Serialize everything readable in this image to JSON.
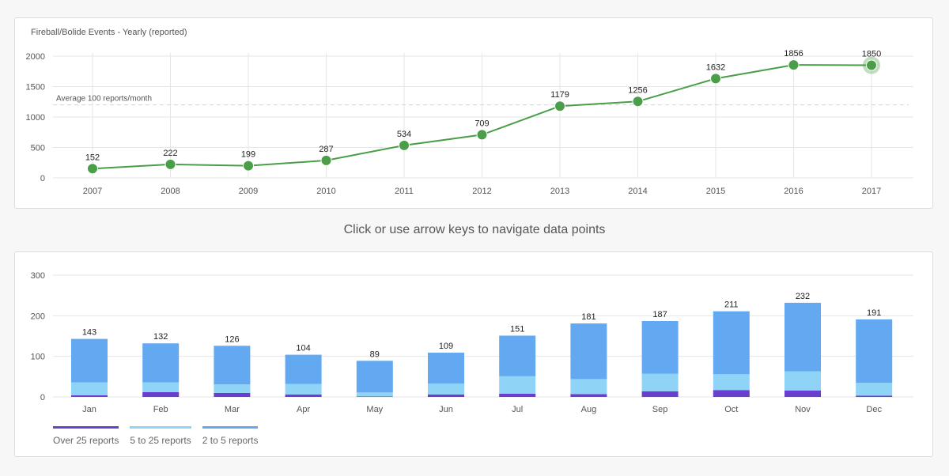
{
  "instruction": "Click or use arrow keys to navigate data points",
  "chart_data": [
    {
      "type": "line",
      "title": "Fireball/Bolide Events - Yearly (reported)",
      "x": [
        "2007",
        "2008",
        "2009",
        "2010",
        "2011",
        "2012",
        "2013",
        "2014",
        "2015",
        "2016",
        "2017"
      ],
      "values": [
        152,
        222,
        199,
        287,
        534,
        709,
        1179,
        1256,
        1632,
        1856,
        1850
      ],
      "ylim": [
        0,
        2000
      ],
      "yticks": [
        0,
        500,
        1000,
        1500,
        2000
      ],
      "grid": true,
      "reference_line": {
        "value": 1200,
        "label": "Average 100 reports/month"
      },
      "selected_point": "2017",
      "color": "#4a9e48"
    },
    {
      "type": "bar",
      "stacked": true,
      "categories": [
        "Jan",
        "Feb",
        "Mar",
        "Apr",
        "May",
        "Jun",
        "Jul",
        "Aug",
        "Sep",
        "Oct",
        "Nov",
        "Dec"
      ],
      "totals": [
        143,
        132,
        126,
        104,
        89,
        109,
        151,
        181,
        187,
        211,
        232,
        191
      ],
      "series": [
        {
          "name": "Over 25 reports",
          "color": "#6a3fd0",
          "values": [
            4,
            12,
            10,
            6,
            1,
            6,
            8,
            7,
            14,
            17,
            16,
            3
          ]
        },
        {
          "name": "5 to 25 reports",
          "color": "#8fd3f7",
          "values": [
            32,
            24,
            21,
            26,
            10,
            27,
            43,
            37,
            43,
            39,
            47,
            32
          ]
        },
        {
          "name": "2 to 5 reports",
          "color": "#62a9f2",
          "values": [
            107,
            96,
            95,
            72,
            78,
            76,
            100,
            137,
            130,
            155,
            169,
            156
          ]
        }
      ],
      "ylim": [
        0,
        300
      ],
      "yticks": [
        0,
        100,
        200,
        300
      ],
      "grid": true,
      "legend": [
        "Over 25 reports",
        "5 to 25 reports",
        "2 to 5 reports"
      ],
      "legend_position": "bottom-left"
    }
  ]
}
